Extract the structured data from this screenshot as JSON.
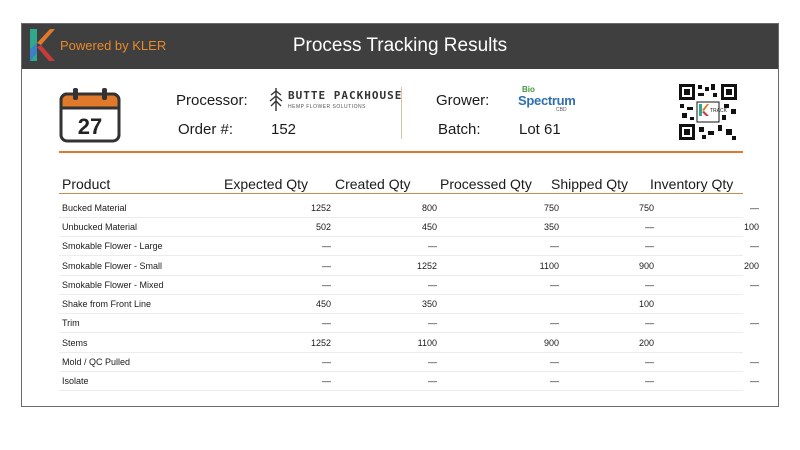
{
  "header": {
    "powered_by": "Powered by KLER",
    "title": "Process Tracking Results"
  },
  "calendar": {
    "day": "27"
  },
  "info": {
    "processor_label": "Processor:",
    "processor_name": "BUTTE PACKHOUSE",
    "processor_tagline": "HEMP FLOWER SOLUTIONS",
    "order_label": "Order #:",
    "order_value": "152",
    "grower_label": "Grower:",
    "grower_name_top": "Bio",
    "grower_name": "Spectrum",
    "grower_sub": "CBD",
    "batch_label": "Batch:",
    "batch_value": "Lot 61",
    "qr_label": "TRACK"
  },
  "colors": {
    "accent": "#e07a2a",
    "header_bg": "#3f3f3f"
  },
  "table": {
    "columns": [
      "Product",
      "Expected Qty",
      "Created Qty",
      "Processed Qty",
      "Shipped Qty",
      "Inventory Qty"
    ],
    "rows": [
      [
        "Bucked Material",
        "1252",
        "800",
        "750",
        "750",
        "—"
      ],
      [
        "Unbucked Material",
        "502",
        "450",
        "350",
        "—",
        "100"
      ],
      [
        "Smokable Flower - Large",
        "—",
        "—",
        "—",
        "—",
        "—"
      ],
      [
        "Smokable Flower - Small",
        "—",
        "1252",
        "1100",
        "900",
        "200"
      ],
      [
        "Smokable Flower - Mixed",
        "—",
        "—",
        "—",
        "—",
        "—"
      ],
      [
        "Shake from Front Line",
        "450",
        "350",
        "",
        "100",
        ""
      ],
      [
        "Trim",
        "—",
        "—",
        "—",
        "—",
        "—"
      ],
      [
        "Stems",
        "1252",
        "1100",
        "900",
        "200",
        ""
      ],
      [
        "Mold / QC Pulled",
        "—",
        "—",
        "—",
        "—",
        "—"
      ],
      [
        "Isolate",
        "—",
        "—",
        "—",
        "—",
        "—"
      ]
    ]
  }
}
